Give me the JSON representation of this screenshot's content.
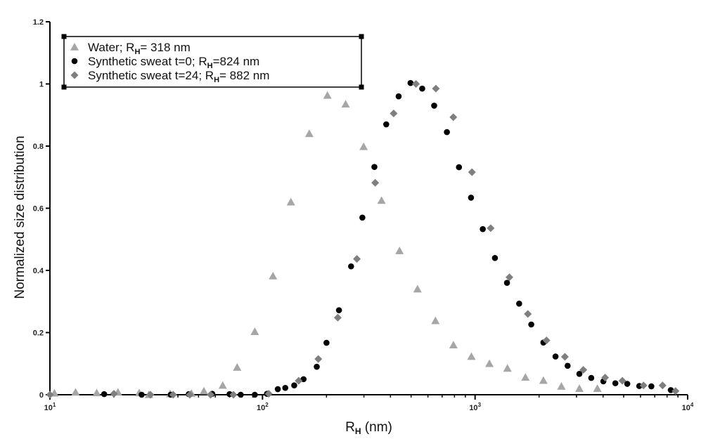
{
  "chart_data": {
    "type": "scatter",
    "xscale": "log",
    "xlim": [
      10,
      10000
    ],
    "ylim": [
      0,
      1.2
    ],
    "xlabel": "R",
    "xlabel_sub": "H",
    "xlabel_suffix": " (nm)",
    "ylabel": "Normalized size distribution",
    "yticks": [
      "0",
      "0.2",
      "0.4",
      "0.6",
      "0.8",
      "1",
      "1.2"
    ],
    "xticks": [
      {
        "base": "10",
        "exp": "1"
      },
      {
        "base": "10",
        "exp": "2"
      },
      {
        "base": "10",
        "exp": "3"
      },
      {
        "base": "10",
        "exp": "4"
      }
    ],
    "legend_position": "top-left",
    "series": [
      {
        "name": "Water; R",
        "name_sub": "H",
        "name_suffix": "= 318 nm",
        "marker": "triangle",
        "color": "#a6a6a6",
        "points": [
          [
            10.5,
            0.005
          ],
          [
            13.2,
            0.008
          ],
          [
            16.6,
            0.006
          ],
          [
            20.9,
            0.008
          ],
          [
            26.3,
            0.006
          ],
          [
            29.2,
            0.0
          ],
          [
            36.8,
            0.003
          ],
          [
            46.3,
            0.004
          ],
          [
            53.0,
            0.012
          ],
          [
            65.0,
            0.03
          ],
          [
            76.0,
            0.088
          ],
          [
            92.0,
            0.203
          ],
          [
            112.0,
            0.382
          ],
          [
            136.0,
            0.62
          ],
          [
            166.0,
            0.84
          ],
          [
            202.0,
            0.963
          ],
          [
            246.0,
            0.935
          ],
          [
            299.0,
            0.798
          ],
          [
            363.0,
            0.625
          ],
          [
            441.0,
            0.463
          ],
          [
            536.0,
            0.34
          ],
          [
            651.0,
            0.238
          ],
          [
            791.0,
            0.16
          ],
          [
            961.0,
            0.123
          ],
          [
            1168.0,
            0.1
          ],
          [
            1420.0,
            0.085
          ],
          [
            1725.0,
            0.056
          ],
          [
            2096.0,
            0.046
          ],
          [
            2547.0,
            0.027
          ],
          [
            3095.0,
            0.02
          ],
          [
            3761.0,
            0.02
          ]
        ]
      },
      {
        "name": "Synthetic sweat t=0; R",
        "name_sub": "H",
        "name_suffix": "=824 nm",
        "marker": "circle",
        "color": "#000000",
        "points": [
          [
            18.0,
            0.002
          ],
          [
            27.0,
            0.0
          ],
          [
            37.0,
            0.0
          ],
          [
            45.0,
            0.002
          ],
          [
            58.0,
            0.003
          ],
          [
            70.0,
            0.002
          ],
          [
            79.0,
            0.0
          ],
          [
            92.0,
            0.0
          ],
          [
            105.0,
            0.003
          ],
          [
            118.0,
            0.018
          ],
          [
            128.0,
            0.022
          ],
          [
            141.0,
            0.03
          ],
          [
            156.0,
            0.05
          ],
          [
            180.0,
            0.09
          ],
          [
            200.0,
            0.167
          ],
          [
            229.0,
            0.272
          ],
          [
            261.0,
            0.413
          ],
          [
            295.0,
            0.57
          ],
          [
            336.0,
            0.733
          ],
          [
            382.0,
            0.87
          ],
          [
            437.0,
            0.96
          ],
          [
            497.0,
            1.003
          ],
          [
            564.0,
            0.985
          ],
          [
            642.0,
            0.93
          ],
          [
            737.0,
            0.845
          ],
          [
            840.0,
            0.732
          ],
          [
            957.0,
            0.634
          ],
          [
            1087.0,
            0.533
          ],
          [
            1240.0,
            0.44
          ],
          [
            1413.0,
            0.36
          ],
          [
            1612.0,
            0.293
          ],
          [
            1838.0,
            0.226
          ],
          [
            2096.0,
            0.168
          ],
          [
            2390.0,
            0.123
          ],
          [
            2725.0,
            0.093
          ],
          [
            3095.0,
            0.067
          ],
          [
            3520.0,
            0.054
          ],
          [
            4013.0,
            0.043
          ],
          [
            4570.0,
            0.037
          ],
          [
            5200.0,
            0.035
          ],
          [
            5920.0,
            0.028
          ],
          [
            6750.0,
            0.027
          ],
          [
            8330.0,
            0.015
          ]
        ]
      },
      {
        "name": "Synthetic sweat t=24; R",
        "name_sub": "H",
        "name_suffix": "= 882 nm",
        "marker": "diamond",
        "color": "#7f7f7f",
        "points": [
          [
            10.0,
            0.0
          ],
          [
            20.0,
            0.003
          ],
          [
            29.7,
            0.0
          ],
          [
            38.0,
            0.0
          ],
          [
            45.5,
            0.0
          ],
          [
            57.0,
            0.0
          ],
          [
            73.0,
            0.0
          ],
          [
            107.0,
            0.003
          ],
          [
            148.0,
            0.045
          ],
          [
            183.0,
            0.115
          ],
          [
            226.0,
            0.248
          ],
          [
            278.0,
            0.437
          ],
          [
            339.0,
            0.682
          ],
          [
            414.0,
            0.905
          ],
          [
            527.0,
            1.0
          ],
          [
            654.0,
            0.985
          ],
          [
            790.0,
            0.893
          ],
          [
            967.0,
            0.716
          ],
          [
            1184.0,
            0.536
          ],
          [
            1450.0,
            0.378
          ],
          [
            1771.0,
            0.26
          ],
          [
            2167.0,
            0.175
          ],
          [
            2646.0,
            0.122
          ],
          [
            3230.0,
            0.08
          ],
          [
            4090.0,
            0.055
          ],
          [
            4930.0,
            0.045
          ],
          [
            6200.0,
            0.03
          ],
          [
            7620.0,
            0.03
          ],
          [
            8770.0,
            0.012
          ]
        ]
      }
    ]
  }
}
